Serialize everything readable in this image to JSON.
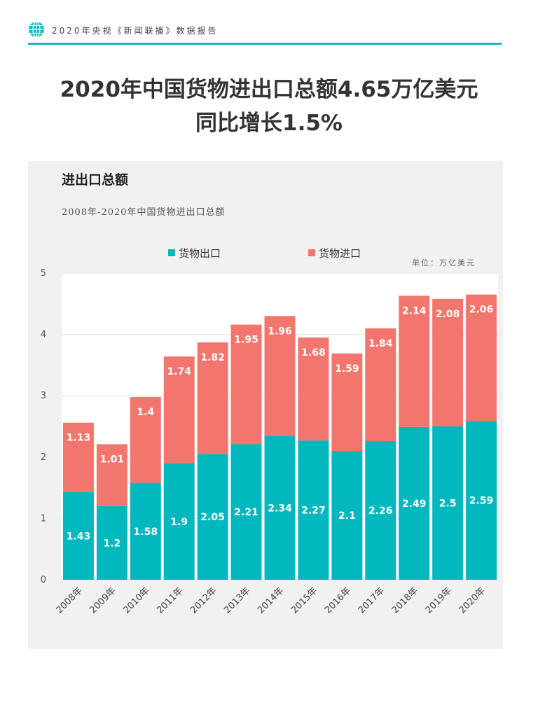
{
  "header": {
    "text": "2020年央视《新闻联播》数据报告",
    "icon": "globe-icon",
    "accent_color": "#19b7bd"
  },
  "headline": {
    "line1": "2020年中国货物进出口总额4.65万亿美元",
    "line2": "同比增长1.5%"
  },
  "panel": {
    "title": "进出口总额",
    "subtitle": "2008年-2020年中国货物进出口总额",
    "unit_note": "单位：万亿美元"
  },
  "chart_data": {
    "type": "bar",
    "stacked": true,
    "categories": [
      "2008年",
      "2009年",
      "2010年",
      "2011年",
      "2012年",
      "2013年",
      "2014年",
      "2015年",
      "2016年",
      "2017年",
      "2018年",
      "2019年",
      "2020年"
    ],
    "series": [
      {
        "name": "货物出口",
        "color": "#00b8be",
        "values": [
          1.43,
          1.2,
          1.58,
          1.9,
          2.05,
          2.21,
          2.34,
          2.27,
          2.1,
          2.26,
          2.49,
          2.5,
          2.59
        ]
      },
      {
        "name": "货物进口",
        "color": "#f3766e",
        "values": [
          1.13,
          1.01,
          1.4,
          1.74,
          1.82,
          1.95,
          1.96,
          1.68,
          1.59,
          1.84,
          2.14,
          2.08,
          2.06
        ]
      }
    ],
    "ylim": [
      0,
      5
    ],
    "yticks": [
      0,
      1,
      2,
      3,
      4,
      5
    ],
    "grid": true,
    "legend_position": "top",
    "xlabel": "",
    "ylabel": ""
  }
}
